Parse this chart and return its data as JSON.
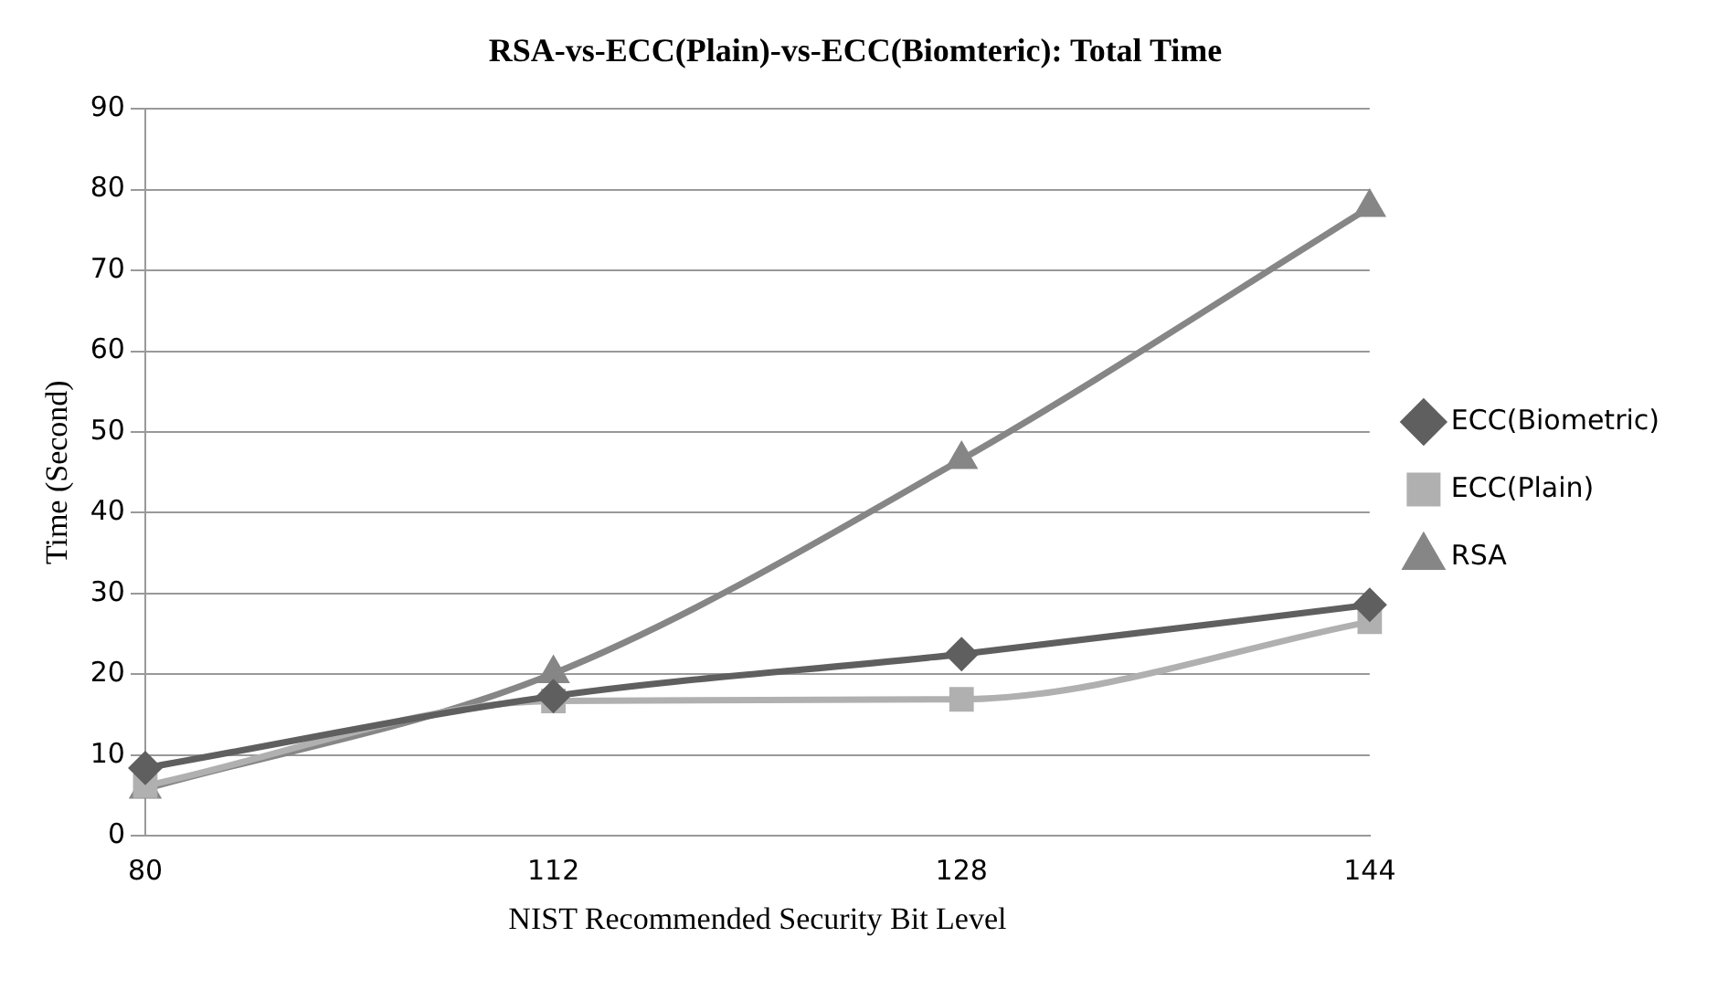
{
  "chart_data": {
    "type": "line",
    "title": "RSA-vs-ECC(Plain)-vs-ECC(Biomteric): Total Time",
    "xlabel": "NIST Recommended Security Bit Level",
    "ylabel": "Time (Second)",
    "categories": [
      "80",
      "112",
      "128",
      "144"
    ],
    "series": [
      {
        "name": "ECC(Biometric)",
        "color": "#5f5f5f",
        "marker": "diamond",
        "values": [
          8.4,
          17.3,
          22.5,
          28.6
        ]
      },
      {
        "name": "ECC(Plain)",
        "color": "#b0b0b0",
        "marker": "square",
        "values": [
          6.2,
          16.7,
          16.9,
          26.5
        ]
      },
      {
        "name": "RSA",
        "color": "#868686",
        "marker": "triangle",
        "values": [
          5.8,
          20.1,
          46.6,
          77.8
        ]
      }
    ],
    "ylim": [
      0,
      90
    ],
    "yticks": [
      0,
      10,
      20,
      30,
      40,
      50,
      60,
      70,
      80,
      90
    ],
    "grid": "y",
    "legend": "right"
  }
}
